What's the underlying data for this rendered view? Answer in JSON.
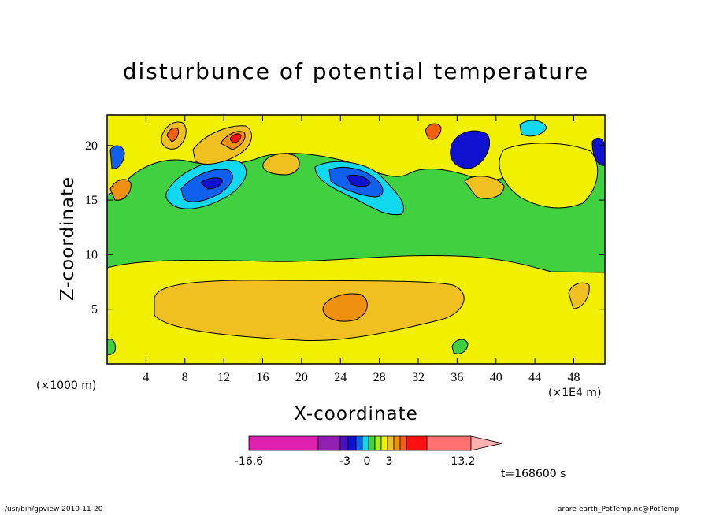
{
  "chart_data": {
    "type": "heatmap",
    "title": "disturbunce of potential temperature",
    "xlabel": "X-coordinate",
    "ylabel": "Z-coordinate",
    "x_unit_label": "(×1000 m)",
    "x_scale_label": "(×1E4 m)",
    "x_ticks": [
      "4",
      "8",
      "12",
      "16",
      "20",
      "24",
      "28",
      "32",
      "36",
      "40",
      "44",
      "48"
    ],
    "y_ticks": [
      "5",
      "10",
      "15",
      "20"
    ],
    "xlim": [
      0,
      51.2
    ],
    "ylim": [
      0,
      22.8
    ],
    "time_label": "t=168600 s",
    "colorbar": {
      "min_label": "-16.6",
      "max_label": "13.2",
      "labels": [
        "-3",
        "0",
        "3"
      ],
      "colors": [
        "#e020b0",
        "#9020b0",
        "#4a10c0",
        "#1010d0",
        "#1060f0",
        "#10d8f0",
        "#40d040",
        "#a0f020",
        "#f0f000",
        "#f0c020",
        "#f09010",
        "#f06010",
        "#ff1010",
        "#ff7070",
        "#ffb0b0"
      ]
    },
    "fields": {
      "description": "Filled contours of potential temperature disturbance: warm band (~+1 to +3) near z=5, neutral (~0) around z=10, alternating warm/cold anomalies aloft (z=15-22)",
      "background_levels": [
        {
          "z_range": [
            0,
            3
          ],
          "level": "weak positive"
        },
        {
          "z_range": [
            3,
            8
          ],
          "level": "positive, max ~3 near x=25"
        },
        {
          "z_range": [
            8,
            10
          ],
          "level": "weak positive"
        },
        {
          "z_range": [
            10,
            15
          ],
          "level": "near zero"
        },
        {
          "z_range": [
            15,
            22.8
          ],
          "level": "alternating anomalies"
        }
      ]
    }
  },
  "footer": {
    "left": "/usr/bin/gpview  2010-11-20",
    "right": "arare-earth_PotTemp.nc@PotTemp"
  }
}
